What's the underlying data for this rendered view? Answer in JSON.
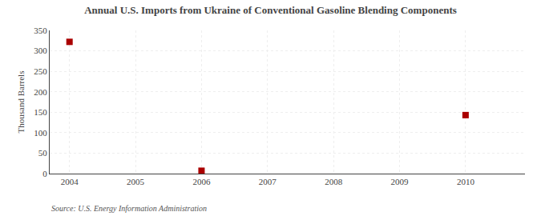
{
  "chart_data": {
    "type": "scatter",
    "title": "Annual U.S. Imports from Ukraine of Conventional Gasoline Blending Components",
    "ylabel": "Thousand Barrels",
    "annotations": [
      "Source: U.S. Energy Information Administration"
    ],
    "x": [
      2004,
      2006,
      2010
    ],
    "values": [
      322,
      7,
      143
    ],
    "color": "#aa0000",
    "marker": "square",
    "xlim": [
      2003.7,
      2010.9
    ],
    "ylim": [
      0,
      350
    ],
    "xticks": [
      2004,
      2005,
      2006,
      2007,
      2008,
      2009,
      2010
    ],
    "yticks": [
      0,
      50,
      100,
      150,
      200,
      250,
      300,
      350
    ],
    "grid": true
  }
}
